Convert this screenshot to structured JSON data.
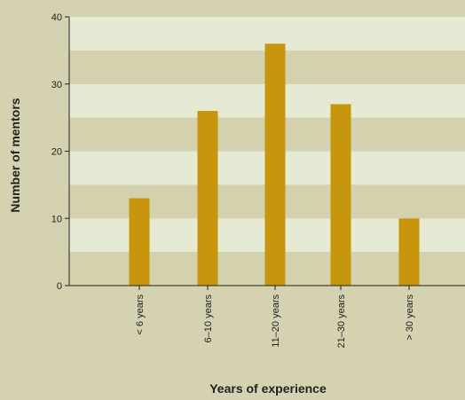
{
  "chart_data": {
    "type": "bar",
    "categories": [
      "< 6 years",
      "6–10 years",
      "11–20 years",
      "21–30 years",
      "> 30 years"
    ],
    "values": [
      13,
      26,
      36,
      27,
      10
    ],
    "title": "",
    "xlabel": "Years of experience",
    "ylabel": "Number of mentors",
    "ylim": [
      0,
      40
    ],
    "yticks": [
      0,
      10,
      20,
      30,
      40
    ],
    "grid": "alternating horizontal bands every 5 units",
    "colors": {
      "bar": "#c8960c",
      "band_light": "#e6ead4",
      "band_dark": "#d3d1ae",
      "background": "#d4d2b0",
      "axis": "#222222"
    }
  }
}
